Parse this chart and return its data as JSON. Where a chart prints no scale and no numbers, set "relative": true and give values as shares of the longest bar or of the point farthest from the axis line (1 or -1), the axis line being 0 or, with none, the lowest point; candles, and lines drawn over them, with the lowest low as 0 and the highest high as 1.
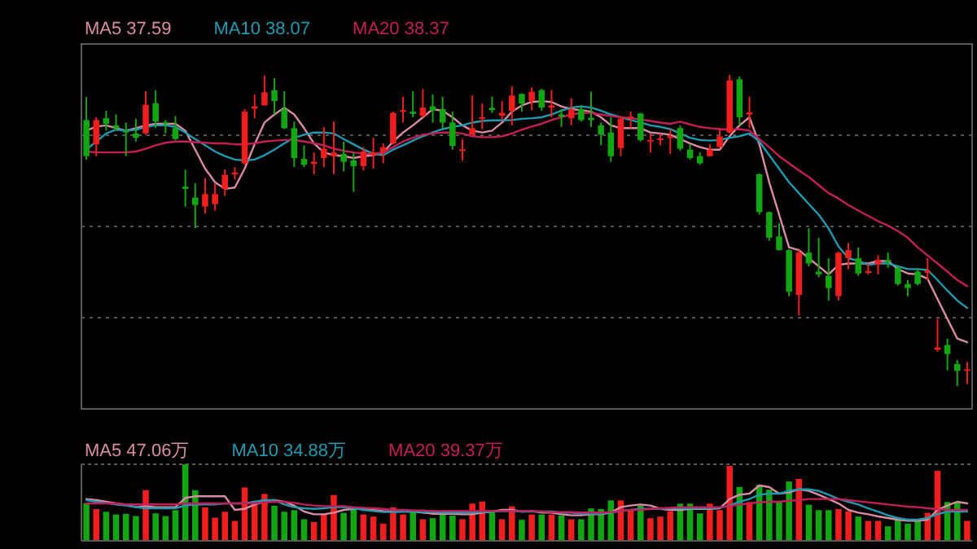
{
  "chart_data": [
    {
      "type": "candlestick",
      "relative": true,
      "grid": "y",
      "legend": "top left",
      "categories": [
        null,
        null,
        null,
        null,
        null,
        null,
        null,
        null,
        null,
        null,
        null,
        null,
        null,
        null,
        null,
        null,
        null,
        null,
        null,
        null,
        null,
        null,
        null,
        null,
        null,
        null,
        null,
        null,
        null,
        null,
        null,
        null,
        null,
        null,
        null,
        null,
        null,
        null,
        null,
        null,
        null,
        null,
        null,
        null,
        null,
        null,
        null,
        null,
        null,
        null,
        null,
        null,
        null,
        null,
        null,
        null,
        null,
        null,
        null,
        null,
        null,
        null,
        null,
        null,
        null,
        null,
        null,
        null,
        null,
        null,
        null,
        null,
        null,
        null,
        null,
        null,
        null,
        null,
        null,
        null,
        null,
        null,
        null,
        null,
        null,
        null,
        null,
        null,
        null,
        null
      ],
      "ohlc": [
        [
          0.855,
          0.929,
          0.728,
          0.739
        ],
        [
          0.777,
          0.864,
          0.739,
          0.855
        ],
        [
          0.861,
          0.885,
          0.821,
          0.843
        ],
        [
          0.838,
          0.873,
          0.821,
          0.829
        ],
        [
          0.821,
          0.847,
          0.739,
          0.815
        ],
        [
          0.812,
          0.859,
          0.786,
          0.798
        ],
        [
          0.812,
          0.948,
          0.808,
          0.904
        ],
        [
          0.909,
          0.951,
          0.829,
          0.85
        ],
        [
          0.848,
          0.855,
          0.812,
          0.843
        ],
        [
          0.829,
          0.868,
          0.791,
          0.794
        ],
        [
          0.641,
          0.695,
          0.577,
          0.634
        ],
        [
          0.606,
          0.652,
          0.507,
          0.582
        ],
        [
          0.577,
          0.669,
          0.554,
          0.617
        ],
        [
          0.585,
          0.652,
          0.564,
          0.617
        ],
        [
          0.634,
          0.697,
          0.611,
          0.679
        ],
        [
          0.681,
          0.704,
          0.664,
          0.686
        ],
        [
          0.716,
          0.89,
          0.711,
          0.882
        ],
        [
          0.892,
          0.937,
          0.861,
          0.899
        ],
        [
          0.902,
          0.998,
          0.902,
          0.944
        ],
        [
          0.951,
          0.99,
          0.873,
          0.916
        ],
        [
          0.89,
          0.948,
          0.826,
          0.829
        ],
        [
          0.829,
          0.85,
          0.704,
          0.733
        ],
        [
          0.73,
          0.774,
          0.704,
          0.711
        ],
        [
          0.714,
          0.751,
          0.681,
          0.721
        ],
        [
          0.733,
          0.833,
          0.704,
          0.763
        ],
        [
          0.739,
          0.85,
          0.681,
          0.751
        ],
        [
          0.746,
          0.786,
          0.69,
          0.721
        ],
        [
          0.725,
          0.751,
          0.624,
          0.707
        ],
        [
          0.707,
          0.768,
          0.693,
          0.754
        ],
        [
          0.742,
          0.798,
          0.699,
          0.751
        ],
        [
          0.751,
          0.78,
          0.716,
          0.768
        ],
        [
          0.78,
          0.882,
          0.777,
          0.878
        ],
        [
          0.882,
          0.93,
          0.847,
          0.887
        ],
        [
          0.882,
          0.948,
          0.864,
          0.875
        ],
        [
          0.868,
          0.955,
          0.864,
          0.895
        ],
        [
          0.899,
          0.937,
          0.847,
          0.885
        ],
        [
          0.89,
          0.93,
          0.829,
          0.847
        ],
        [
          0.847,
          0.882,
          0.76,
          0.772
        ],
        [
          0.756,
          0.794,
          0.725,
          0.761
        ],
        [
          0.808,
          0.934,
          0.808,
          0.829
        ],
        [
          0.861,
          0.908,
          0.826,
          0.864
        ],
        [
          0.894,
          0.93,
          0.878,
          0.887
        ],
        [
          0.869,
          0.916,
          0.855,
          0.878
        ],
        [
          0.885,
          0.963,
          0.838,
          0.934
        ],
        [
          0.939,
          0.941,
          0.882,
          0.908
        ],
        [
          0.916,
          0.96,
          0.887,
          0.946
        ],
        [
          0.951,
          0.955,
          0.885,
          0.895
        ],
        [
          0.895,
          0.951,
          0.864,
          0.902
        ],
        [
          0.873,
          0.89,
          0.833,
          0.866
        ],
        [
          0.861,
          0.925,
          0.838,
          0.89
        ],
        [
          0.89,
          0.902,
          0.85,
          0.855
        ],
        [
          0.862,
          0.946,
          0.833,
          0.855
        ],
        [
          0.838,
          0.847,
          0.774,
          0.808
        ],
        [
          0.815,
          0.864,
          0.721,
          0.739
        ],
        [
          0.765,
          0.864,
          0.739,
          0.859
        ],
        [
          0.861,
          0.882,
          0.829,
          0.866
        ],
        [
          0.876,
          0.878,
          0.786,
          0.791
        ],
        [
          0.786,
          0.812,
          0.751,
          0.791
        ],
        [
          0.791,
          0.812,
          0.774,
          0.796
        ],
        [
          0.798,
          0.826,
          0.746,
          0.803
        ],
        [
          0.829,
          0.838,
          0.756,
          0.763
        ],
        [
          0.76,
          0.777,
          0.728,
          0.733
        ],
        [
          0.739,
          0.751,
          0.711,
          0.716
        ],
        [
          0.739,
          0.777,
          0.737,
          0.76
        ],
        [
          0.768,
          0.829,
          0.768,
          0.803
        ],
        [
          0.815,
          1.0,
          0.812,
          0.983
        ],
        [
          0.986,
          0.995,
          0.838,
          0.864
        ],
        [
          0.873,
          0.93,
          0.829,
          0.88
        ],
        [
          0.681,
          0.683,
          0.551,
          0.559
        ],
        [
          0.559,
          0.561,
          0.467,
          0.477
        ],
        [
          0.481,
          0.524,
          0.436,
          0.437
        ],
        [
          0.437,
          0.439,
          0.289,
          0.303
        ],
        [
          0.293,
          0.437,
          0.228,
          0.429
        ],
        [
          0.429,
          0.507,
          0.385,
          0.394
        ],
        [
          0.368,
          0.477,
          0.35,
          0.359
        ],
        [
          0.355,
          0.411,
          0.275,
          0.315
        ],
        [
          0.289,
          0.432,
          0.275,
          0.429
        ],
        [
          0.411,
          0.46,
          0.376,
          0.437
        ],
        [
          0.411,
          0.446,
          0.354,
          0.362
        ],
        [
          0.364,
          0.394,
          0.359,
          0.369
        ],
        [
          0.39,
          0.42,
          0.359,
          0.406
        ],
        [
          0.406,
          0.429,
          0.38,
          0.399
        ],
        [
          0.38,
          0.385,
          0.324,
          0.328
        ],
        [
          0.328,
          0.341,
          0.289,
          0.315
        ],
        [
          0.368,
          0.376,
          0.324,
          0.328
        ],
        [
          0.364,
          0.411,
          0.341,
          0.371
        ],
        [
          0.117,
          0.216,
          0.111,
          0.124
        ],
        [
          0.132,
          0.153,
          0.051,
          0.103
        ],
        [
          0.071,
          0.084,
          0.0,
          0.049
        ],
        [
          0.049,
          0.077,
          0.007,
          0.054
        ]
      ],
      "colors": [
        "#13a613",
        "#f01e1e",
        "#13a613",
        "#13a613",
        "#13a613",
        "#13a613",
        "#f01e1e",
        "#13a613",
        "#13a613",
        "#13a613",
        "#13a613",
        "#13a613",
        "#f01e1e",
        "#f01e1e",
        "#f01e1e",
        "#f01e1e",
        "#f01e1e",
        "#f01e1e",
        "#f01e1e",
        "#13a613",
        "#13a613",
        "#13a613",
        "#13a613",
        "#f01e1e",
        "#f01e1e",
        "#f01e1e",
        "#13a613",
        "#13a613",
        "#f01e1e",
        "#f01e1e",
        "#f01e1e",
        "#f01e1e",
        "#f01e1e",
        "#13a613",
        "#f01e1e",
        "#13a613",
        "#13a613",
        "#13a613",
        "#f01e1e",
        "#f01e1e",
        "#f01e1e",
        "#13a613",
        "#f01e1e",
        "#f01e1e",
        "#13a613",
        "#f01e1e",
        "#13a613",
        "#f01e1e",
        "#13a613",
        "#f01e1e",
        "#13a613",
        "#13a613",
        "#13a613",
        "#13a613",
        "#f01e1e",
        "#f01e1e",
        "#13a613",
        "#f01e1e",
        "#f01e1e",
        "#f01e1e",
        "#13a613",
        "#13a613",
        "#13a613",
        "#f01e1e",
        "#f01e1e",
        "#f01e1e",
        "#13a613",
        "#f01e1e",
        "#13a613",
        "#13a613",
        "#13a613",
        "#13a613",
        "#f01e1e",
        "#13a613",
        "#13a613",
        "#13a613",
        "#f01e1e",
        "#f01e1e",
        "#13a613",
        "#f01e1e",
        "#f01e1e",
        "#13a613",
        "#13a613",
        "#13a613",
        "#13a613",
        "#f01e1e",
        "#f01e1e",
        "#13a613",
        "#13a613",
        "#f01e1e"
      ],
      "series": [
        {
          "type": "line",
          "name": "MA5 37.59",
          "color": "#d98ca3",
          "values": [
            0.821,
            0.834,
            0.838,
            0.829,
            0.821,
            0.829,
            0.838,
            0.843,
            0.843,
            0.843,
            0.821,
            0.76,
            0.699,
            0.655,
            0.634,
            0.638,
            0.699,
            0.777,
            0.847,
            0.873,
            0.895,
            0.873,
            0.829,
            0.78,
            0.751,
            0.742,
            0.739,
            0.733,
            0.739,
            0.742,
            0.751,
            0.786,
            0.815,
            0.838,
            0.864,
            0.89,
            0.885,
            0.864,
            0.838,
            0.821,
            0.815,
            0.821,
            0.847,
            0.882,
            0.902,
            0.913,
            0.916,
            0.913,
            0.899,
            0.89,
            0.887,
            0.882,
            0.864,
            0.838,
            0.829,
            0.829,
            0.829,
            0.815,
            0.812,
            0.808,
            0.794,
            0.78,
            0.768,
            0.76,
            0.76,
            0.803,
            0.838,
            0.864,
            0.777,
            0.655,
            0.551,
            0.446,
            0.437,
            0.411,
            0.385,
            0.359,
            0.39,
            0.394,
            0.394,
            0.394,
            0.402,
            0.402,
            0.376,
            0.362,
            0.359,
            0.345,
            0.28,
            0.216,
            0.153,
            0.141
          ]
        },
        {
          "type": "line",
          "name": "MA10 38.07",
          "color": "#1e9ab0",
          "values": [
            0.76,
            0.786,
            0.812,
            0.824,
            0.821,
            0.824,
            0.833,
            0.838,
            0.838,
            0.833,
            0.815,
            0.794,
            0.774,
            0.754,
            0.739,
            0.728,
            0.725,
            0.728,
            0.742,
            0.76,
            0.78,
            0.798,
            0.808,
            0.815,
            0.815,
            0.812,
            0.794,
            0.777,
            0.76,
            0.747,
            0.742,
            0.76,
            0.774,
            0.789,
            0.803,
            0.815,
            0.826,
            0.833,
            0.838,
            0.847,
            0.852,
            0.854,
            0.854,
            0.855,
            0.859,
            0.861,
            0.864,
            0.873,
            0.885,
            0.895,
            0.899,
            0.895,
            0.885,
            0.873,
            0.864,
            0.855,
            0.847,
            0.838,
            0.833,
            0.826,
            0.812,
            0.798,
            0.791,
            0.789,
            0.791,
            0.798,
            0.803,
            0.812,
            0.786,
            0.742,
            0.699,
            0.655,
            0.62,
            0.585,
            0.551,
            0.507,
            0.449,
            0.411,
            0.402,
            0.39,
            0.394,
            0.394,
            0.385,
            0.376,
            0.376,
            0.373,
            0.341,
            0.307,
            0.275,
            0.251
          ]
        },
        {
          "type": "line",
          "name": "MA20 38.37",
          "color": "#c41e5a",
          "values": [
            0.754,
            0.751,
            0.751,
            0.751,
            0.751,
            0.754,
            0.763,
            0.774,
            0.782,
            0.786,
            0.786,
            0.784,
            0.782,
            0.78,
            0.78,
            0.777,
            0.777,
            0.78,
            0.786,
            0.789,
            0.791,
            0.791,
            0.786,
            0.78,
            0.774,
            0.763,
            0.756,
            0.751,
            0.747,
            0.746,
            0.751,
            0.768,
            0.786,
            0.798,
            0.808,
            0.812,
            0.815,
            0.815,
            0.812,
            0.803,
            0.8,
            0.8,
            0.803,
            0.812,
            0.824,
            0.834,
            0.843,
            0.855,
            0.864,
            0.873,
            0.878,
            0.878,
            0.873,
            0.868,
            0.864,
            0.861,
            0.857,
            0.852,
            0.847,
            0.843,
            0.85,
            0.841,
            0.833,
            0.829,
            0.826,
            0.824,
            0.826,
            0.821,
            0.794,
            0.768,
            0.739,
            0.716,
            0.693,
            0.672,
            0.646,
            0.62,
            0.603,
            0.582,
            0.564,
            0.547,
            0.53,
            0.516,
            0.498,
            0.477,
            0.446,
            0.42,
            0.394,
            0.368,
            0.341,
            0.321
          ]
        }
      ]
    },
    {
      "type": "bar",
      "relative": true,
      "categories": [
        null,
        null,
        null,
        null,
        null,
        null,
        null,
        null,
        null,
        null,
        null,
        null,
        null,
        null,
        null,
        null,
        null,
        null,
        null,
        null,
        null,
        null,
        null,
        null,
        null,
        null,
        null,
        null,
        null,
        null,
        null,
        null,
        null,
        null,
        null,
        null,
        null,
        null,
        null,
        null,
        null,
        null,
        null,
        null,
        null,
        null,
        null,
        null,
        null,
        null,
        null,
        null,
        null,
        null,
        null,
        null,
        null,
        null,
        null,
        null,
        null,
        null,
        null,
        null,
        null,
        null,
        null,
        null,
        null,
        null,
        null,
        null,
        null,
        null,
        null,
        null,
        null,
        null,
        null,
        null,
        null,
        null,
        null,
        null,
        null,
        null,
        null,
        null,
        null,
        null
      ],
      "values": [
        0.493,
        0.415,
        0.38,
        0.345,
        0.352,
        0.324,
        0.662,
        0.359,
        0.324,
        0.401,
        1,
        0.662,
        0.437,
        0.303,
        0.38,
        0.261,
        0.697,
        0.472,
        0.613,
        0.458,
        0.38,
        0.401,
        0.282,
        0.246,
        0.345,
        0.599,
        0.366,
        0.423,
        0.345,
        0.317,
        0.225,
        0.437,
        0.345,
        0.387,
        0.282,
        0.296,
        0.345,
        0.331,
        0.282,
        0.486,
        0.514,
        0.401,
        0.282,
        0.451,
        0.275,
        0.345,
        0.345,
        0.345,
        0.331,
        0.282,
        0.282,
        0.423,
        0.415,
        0.528,
        0.528,
        0.401,
        0.458,
        0.296,
        0.317,
        0.387,
        0.486,
        0.486,
        0.359,
        0.486,
        0.401,
        0.979,
        0.704,
        0.507,
        0.732,
        0.669,
        0.507,
        0.775,
        0.81,
        0.472,
        0.401,
        0.401,
        0.415,
        0.387,
        0.317,
        0.261,
        0.261,
        0.19,
        0.282,
        0.225,
        0.261,
        0.366,
        0.915,
        0.507,
        0.507,
        0.261
      ],
      "colors": [
        "#13a613",
        "#f01e1e",
        "#13a613",
        "#13a613",
        "#13a613",
        "#13a613",
        "#f01e1e",
        "#13a613",
        "#13a613",
        "#13a613",
        "#13a613",
        "#13a613",
        "#f01e1e",
        "#f01e1e",
        "#f01e1e",
        "#f01e1e",
        "#f01e1e",
        "#f01e1e",
        "#f01e1e",
        "#13a613",
        "#13a613",
        "#13a613",
        "#13a613",
        "#f01e1e",
        "#f01e1e",
        "#f01e1e",
        "#13a613",
        "#13a613",
        "#f01e1e",
        "#f01e1e",
        "#f01e1e",
        "#f01e1e",
        "#f01e1e",
        "#13a613",
        "#f01e1e",
        "#13a613",
        "#13a613",
        "#13a613",
        "#f01e1e",
        "#f01e1e",
        "#f01e1e",
        "#13a613",
        "#f01e1e",
        "#f01e1e",
        "#13a613",
        "#f01e1e",
        "#13a613",
        "#f01e1e",
        "#13a613",
        "#f01e1e",
        "#13a613",
        "#13a613",
        "#13a613",
        "#13a613",
        "#f01e1e",
        "#f01e1e",
        "#13a613",
        "#f01e1e",
        "#f01e1e",
        "#f01e1e",
        "#13a613",
        "#13a613",
        "#13a613",
        "#f01e1e",
        "#f01e1e",
        "#f01e1e",
        "#13a613",
        "#f01e1e",
        "#13a613",
        "#13a613",
        "#13a613",
        "#13a613",
        "#f01e1e",
        "#13a613",
        "#13a613",
        "#13a613",
        "#f01e1e",
        "#f01e1e",
        "#13a613",
        "#f01e1e",
        "#f01e1e",
        "#13a613",
        "#13a613",
        "#13a613",
        "#13a613",
        "#f01e1e",
        "#f01e1e",
        "#13a613",
        "#13a613",
        "#f01e1e"
      ]
    },
    {
      "type": "line",
      "relative": true,
      "legend": "top left",
      "categories": [
        null,
        null,
        null,
        null,
        null,
        null,
        null,
        null,
        null,
        null,
        null,
        null,
        null,
        null,
        null,
        null,
        null,
        null,
        null,
        null,
        null,
        null,
        null,
        null,
        null,
        null,
        null,
        null,
        null,
        null,
        null,
        null,
        null,
        null,
        null,
        null,
        null,
        null,
        null,
        null,
        null,
        null,
        null,
        null,
        null,
        null,
        null,
        null,
        null,
        null,
        null,
        null,
        null,
        null,
        null,
        null,
        null,
        null,
        null,
        null,
        null,
        null,
        null,
        null,
        null,
        null,
        null,
        null,
        null,
        null,
        null,
        null,
        null,
        null,
        null,
        null,
        null,
        null,
        null,
        null,
        null,
        null,
        null,
        null,
        null,
        null,
        null,
        null,
        null,
        null
      ],
      "series": [
        {
          "name": "MA5 47.06万",
          "color": "#d98ca3",
          "values": [
            0.755,
            0.735,
            0.706,
            0.676,
            0.657,
            0.608,
            0.627,
            0.608,
            0.608,
            0.608,
            0.775,
            0.804,
            0.804,
            0.804,
            0.804,
            0.559,
            0.578,
            0.657,
            0.706,
            0.735,
            0.706,
            0.637,
            0.529,
            0.48,
            0.48,
            0.51,
            0.559,
            0.578,
            0.578,
            0.559,
            0.539,
            0.529,
            0.529,
            0.529,
            0.51,
            0.49,
            0.49,
            0.49,
            0.48,
            0.48,
            0.51,
            0.529,
            0.559,
            0.559,
            0.529,
            0.539,
            0.51,
            0.51,
            0.48,
            0.461,
            0.461,
            0.48,
            0.48,
            0.51,
            0.608,
            0.637,
            0.657,
            0.637,
            0.578,
            0.559,
            0.559,
            0.578,
            0.578,
            0.578,
            0.588,
            0.755,
            0.833,
            0.853,
            1,
            0.971,
            0.853,
            0.873,
            0.931,
            0.902,
            0.833,
            0.755,
            0.676,
            0.559,
            0.51,
            0.48,
            0.441,
            0.412,
            0.382,
            0.363,
            0.363,
            0.382,
            0.559,
            0.637,
            0.706,
            0.676
          ]
        },
        {
          "name": "MA10 34.88万",
          "color": "#1e9ab0",
          "values": [
            0.735,
            0.706,
            0.686,
            0.657,
            0.637,
            0.608,
            0.588,
            0.588,
            0.588,
            0.588,
            0.637,
            0.657,
            0.657,
            0.657,
            0.676,
            0.676,
            0.676,
            0.706,
            0.735,
            0.735,
            0.657,
            0.608,
            0.588,
            0.578,
            0.588,
            0.608,
            0.608,
            0.588,
            0.559,
            0.539,
            0.52,
            0.52,
            0.529,
            0.529,
            0.52,
            0.52,
            0.51,
            0.51,
            0.51,
            0.51,
            0.52,
            0.529,
            0.539,
            0.539,
            0.529,
            0.529,
            0.529,
            0.529,
            0.51,
            0.51,
            0.49,
            0.49,
            0.49,
            0.51,
            0.539,
            0.559,
            0.578,
            0.578,
            0.578,
            0.588,
            0.588,
            0.588,
            0.588,
            0.588,
            0.598,
            0.637,
            0.706,
            0.755,
            0.833,
            0.853,
            0.853,
            0.902,
            0.931,
            0.931,
            0.902,
            0.833,
            0.755,
            0.706,
            0.657,
            0.588,
            0.529,
            0.461,
            0.412,
            0.382,
            0.382,
            0.412,
            0.48,
            0.529,
            0.529,
            0.529
          ]
        },
        {
          "name": "MA20 39.37万",
          "color": "#c41e5a",
          "values": [
            0.676,
            0.676,
            0.676,
            0.676,
            0.657,
            0.657,
            0.657,
            0.657,
            0.657,
            0.657,
            0.676,
            0.676,
            0.676,
            0.676,
            0.676,
            0.676,
            0.676,
            0.676,
            0.696,
            0.706,
            0.706,
            0.686,
            0.657,
            0.637,
            0.627,
            0.627,
            0.627,
            0.608,
            0.598,
            0.588,
            0.578,
            0.559,
            0.559,
            0.549,
            0.549,
            0.539,
            0.539,
            0.539,
            0.539,
            0.539,
            0.539,
            0.539,
            0.539,
            0.539,
            0.539,
            0.539,
            0.529,
            0.52,
            0.52,
            0.52,
            0.51,
            0.51,
            0.51,
            0.52,
            0.539,
            0.559,
            0.559,
            0.578,
            0.588,
            0.598,
            0.608,
            0.608,
            0.608,
            0.608,
            0.608,
            0.627,
            0.657,
            0.676,
            0.696,
            0.706,
            0.706,
            0.725,
            0.735,
            0.755,
            0.755,
            0.755,
            0.755,
            0.735,
            0.716,
            0.696,
            0.676,
            0.657,
            0.637,
            0.618,
            0.608,
            0.588,
            0.569,
            0.559,
            0.559,
            0.559
          ]
        }
      ]
    }
  ]
}
